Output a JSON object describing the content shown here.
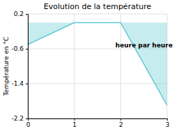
{
  "chart_data": {
    "type": "area",
    "title": "Evolution de la température",
    "ylabel": "Température en °C",
    "annotation": "heure par heure",
    "x": [
      0,
      1,
      2,
      3
    ],
    "values": [
      -0.5,
      0.0,
      0.0,
      -1.9
    ],
    "xlim": [
      0,
      3
    ],
    "ylim": [
      -2.2,
      0.2
    ],
    "xticks": [
      0,
      1,
      2,
      3
    ],
    "yticks": [
      0.2,
      -0.6,
      -1.4,
      -2.2
    ],
    "grid": true,
    "color": "#5bc8d5"
  }
}
